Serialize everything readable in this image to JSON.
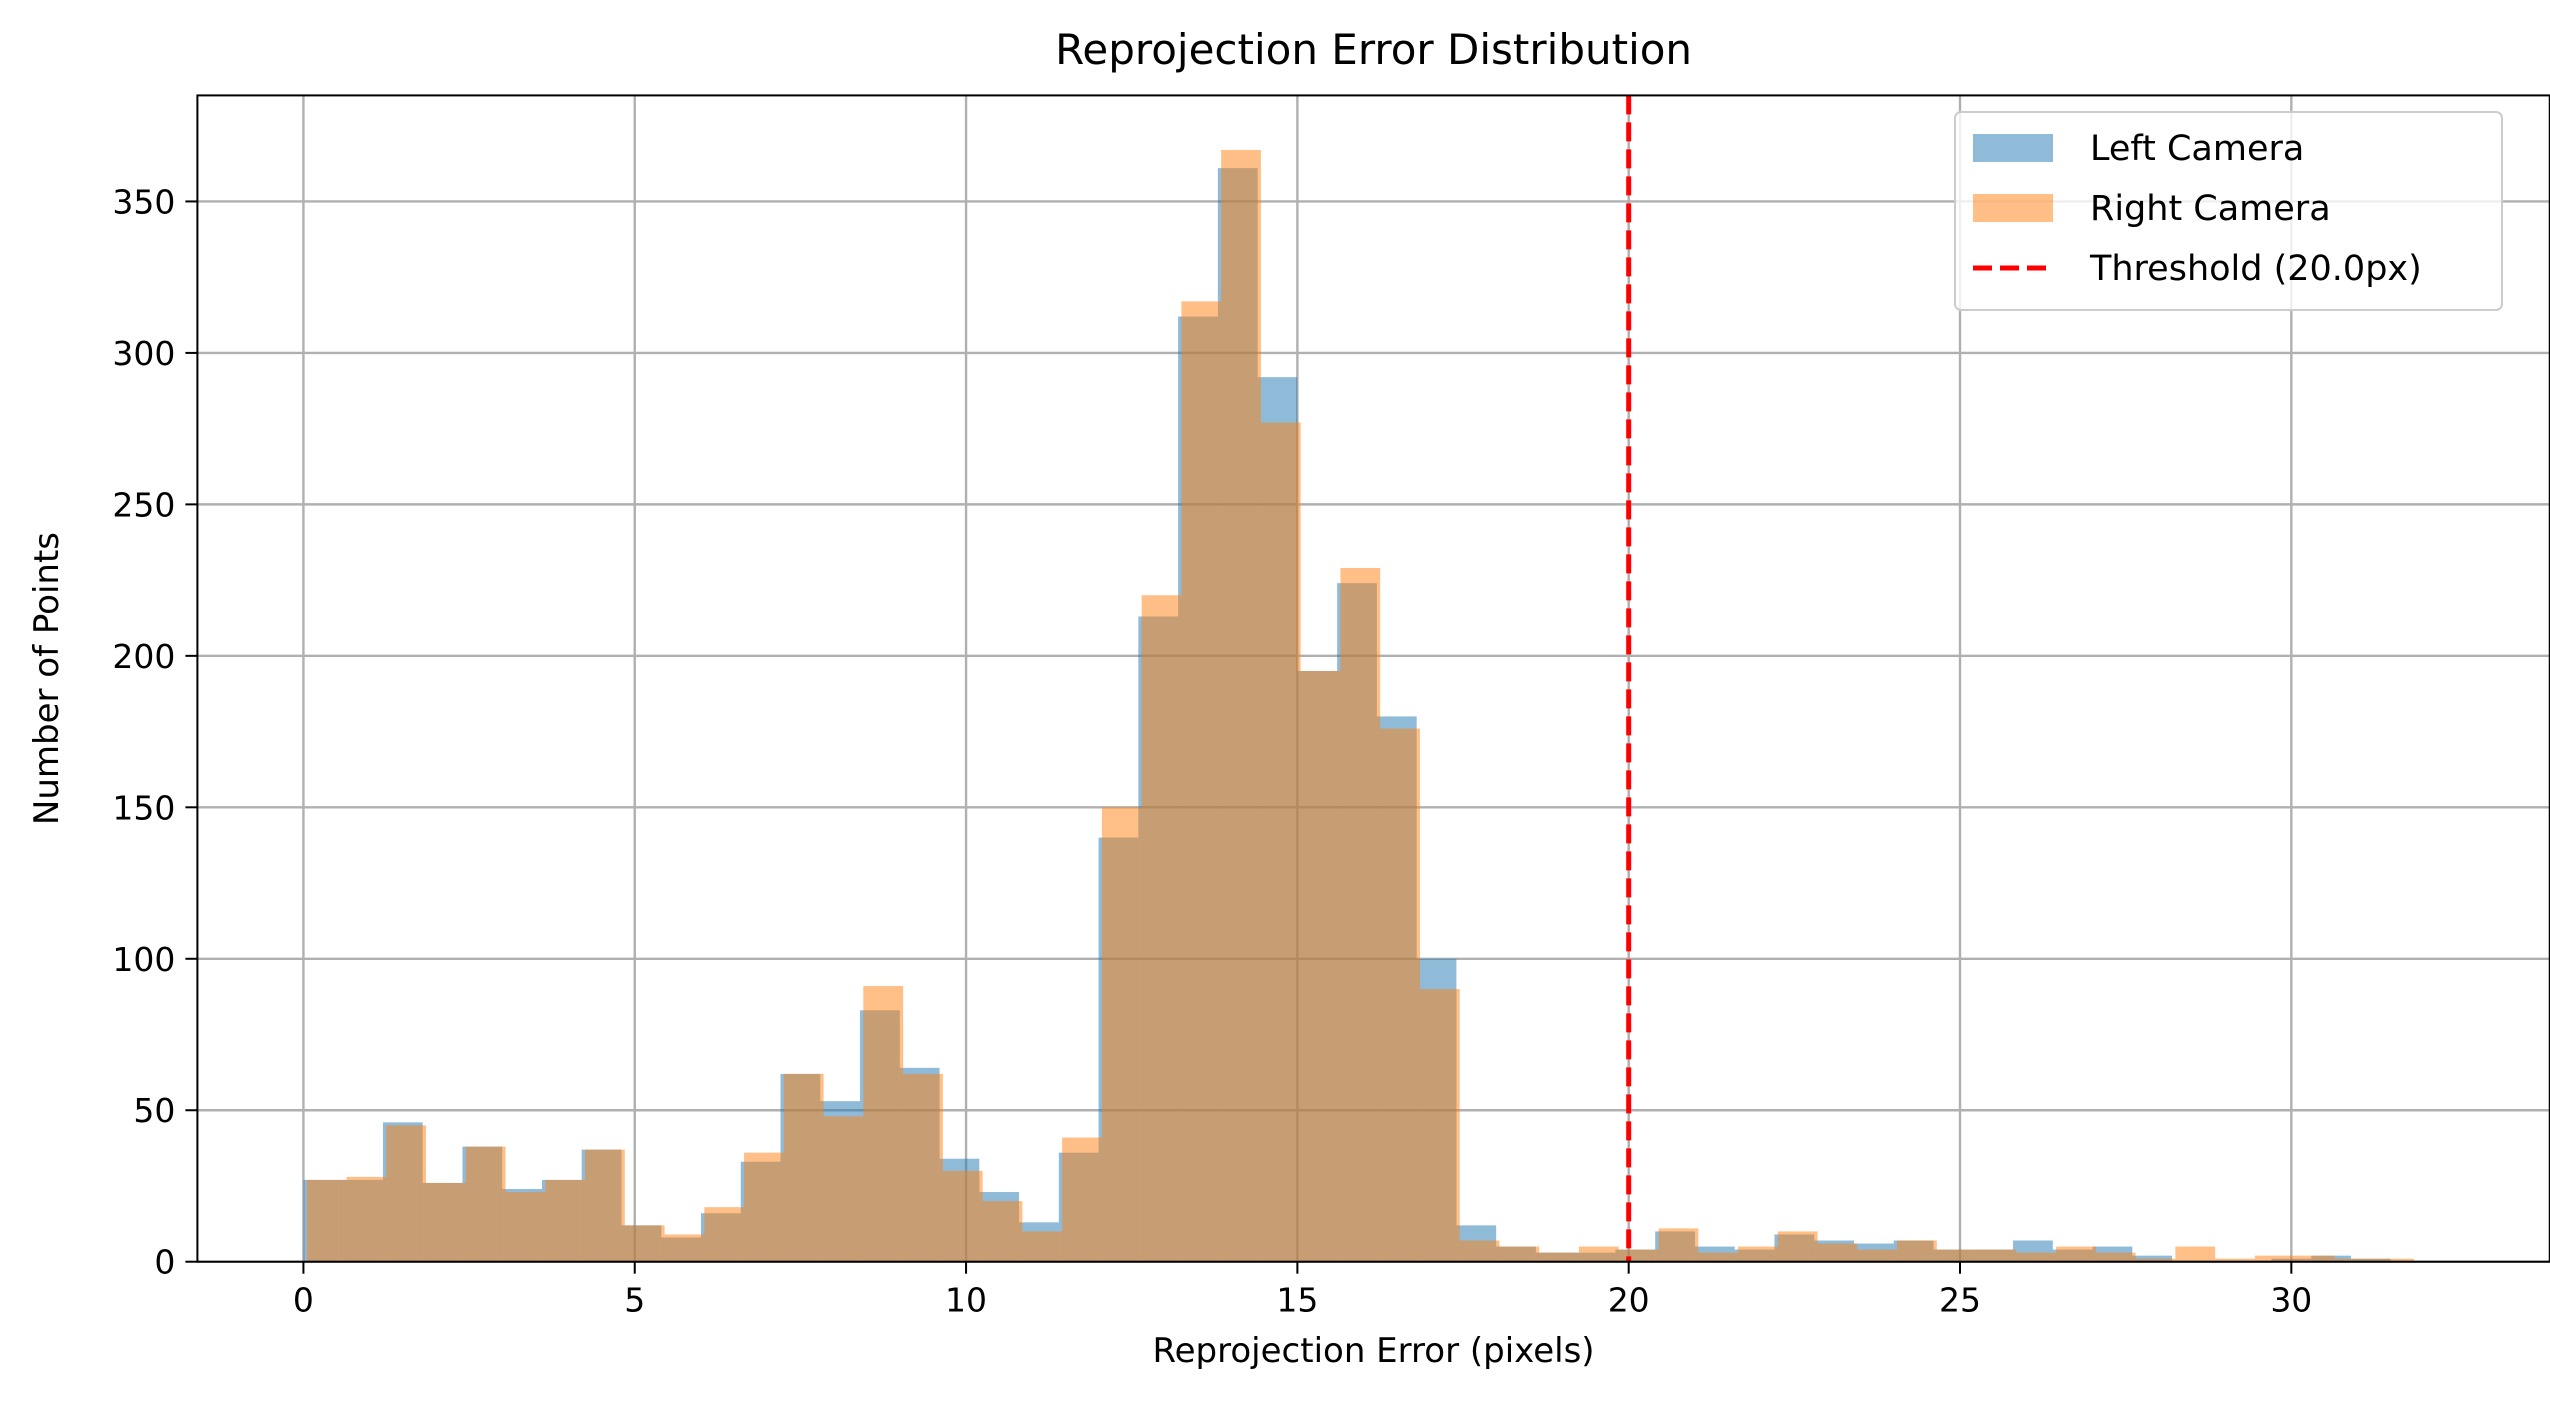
{
  "chart_data": {
    "type": "bar",
    "title": "Reprojection Error Distribution",
    "xlabel": "Reprojection Error (pixels)",
    "ylabel": "Number of Points",
    "xlim": [
      -1.6,
      33.9
    ],
    "ylim": [
      0,
      385
    ],
    "xticks": [
      0,
      5,
      10,
      15,
      20,
      25,
      30
    ],
    "yticks": [
      0,
      50,
      100,
      150,
      200,
      250,
      300,
      350
    ],
    "grid": true,
    "legend_position": "top-right",
    "series": [
      {
        "name": "Left Camera",
        "color": "#1f77b4",
        "opacity": 0.5,
        "bin_edges": [
          0.0,
          0.6,
          1.2,
          1.8,
          2.4,
          3.0,
          3.6,
          4.2,
          4.8,
          5.4,
          6.0,
          6.6,
          7.2,
          7.8,
          8.4,
          9.0,
          9.6,
          10.2,
          10.8,
          11.4,
          12.0,
          12.6,
          13.2,
          13.8,
          14.4,
          15.0,
          15.6,
          16.2,
          16.8,
          17.4,
          18.0,
          18.6,
          19.2,
          19.8,
          20.4,
          21.0,
          21.6,
          22.2,
          22.8,
          23.4,
          24.0,
          24.6,
          25.2,
          25.8,
          26.4,
          27.0,
          27.6,
          28.2
        ],
        "values": [
          27,
          27,
          46,
          26,
          38,
          24,
          27,
          37,
          12,
          8,
          16,
          33,
          62,
          53,
          83,
          64,
          34,
          23,
          13,
          36,
          140,
          213,
          312,
          361,
          292,
          195,
          224,
          180,
          100,
          12,
          5,
          3,
          3,
          4,
          10,
          5,
          4,
          9,
          7,
          6,
          7,
          4,
          4,
          7,
          4,
          5,
          2
        ],
        "tail_bins": [
          [
            29.7,
            30.3,
            1
          ],
          [
            30.3,
            30.9,
            2
          ],
          [
            30.9,
            31.5,
            1
          ]
        ]
      },
      {
        "name": "Right Camera",
        "color": "#ff7f0e",
        "opacity": 0.5,
        "bin_edges": [
          0.05,
          0.65,
          1.25,
          1.85,
          2.45,
          3.05,
          3.65,
          4.25,
          4.85,
          5.45,
          6.05,
          6.65,
          7.25,
          7.85,
          8.45,
          9.05,
          9.65,
          10.25,
          10.85,
          11.45,
          12.05,
          12.65,
          13.25,
          13.85,
          14.45,
          15.05,
          15.65,
          16.25,
          16.85,
          17.45,
          18.05,
          18.65,
          19.25,
          19.85,
          20.45,
          21.05,
          21.65,
          22.25,
          22.85,
          23.45,
          24.05,
          24.65,
          25.25,
          25.85,
          26.45,
          27.05,
          27.65,
          28.25,
          28.85,
          29.45,
          30.05,
          30.65,
          31.25,
          31.85
        ],
        "values": [
          27,
          28,
          45,
          26,
          38,
          23,
          27,
          37,
          12,
          9,
          18,
          36,
          62,
          48,
          91,
          62,
          30,
          20,
          10,
          41,
          150,
          220,
          317,
          367,
          277,
          195,
          229,
          176,
          90,
          7,
          5,
          3,
          5,
          4,
          11,
          3,
          5,
          10,
          6,
          4,
          7,
          4,
          4,
          3,
          5,
          3,
          1,
          5,
          1,
          2,
          2,
          1,
          1
        ]
      },
      {
        "name": "Threshold (20.0px)",
        "color": "#ff0000",
        "style": "dashed",
        "x": 20.0
      }
    ]
  }
}
